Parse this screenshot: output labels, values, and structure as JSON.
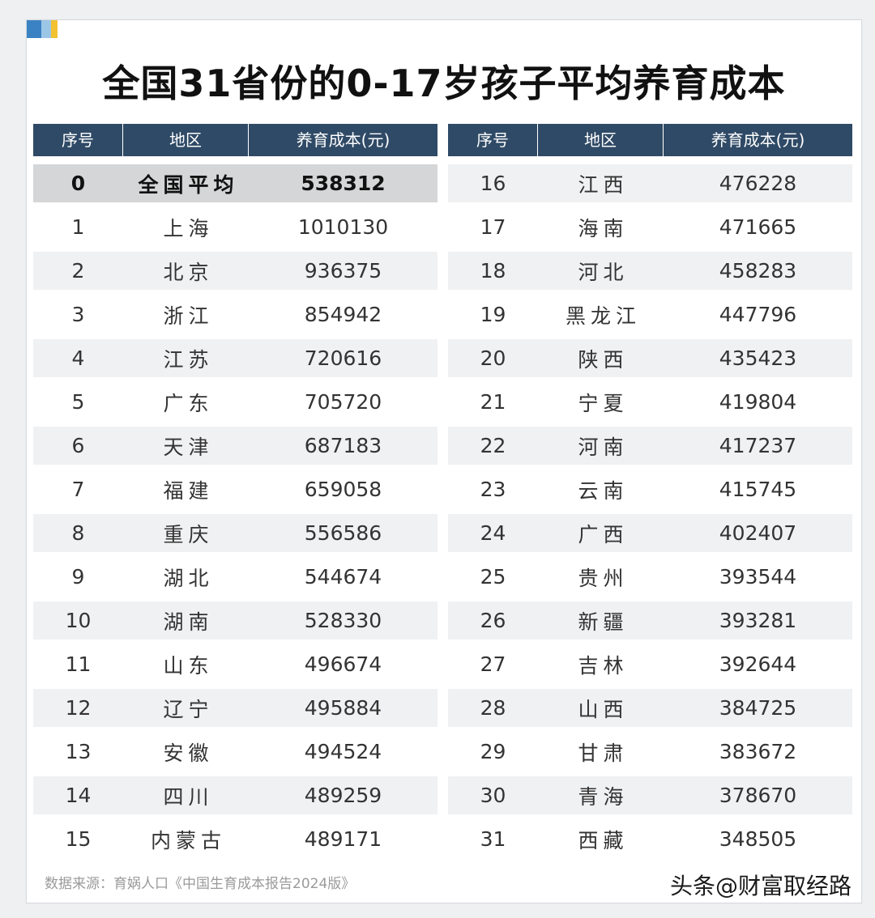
{
  "title": "全国31省份的0-17岁孩子平均养育成本",
  "headers": {
    "index": "序号",
    "region": "地区",
    "cost": "养育成本(元)"
  },
  "left_rows": [
    {
      "index": "0",
      "region": "全国平均",
      "cost": "538312"
    },
    {
      "index": "1",
      "region": "上海",
      "cost": "1010130"
    },
    {
      "index": "2",
      "region": "北京",
      "cost": "936375"
    },
    {
      "index": "3",
      "region": "浙江",
      "cost": "854942"
    },
    {
      "index": "4",
      "region": "江苏",
      "cost": "720616"
    },
    {
      "index": "5",
      "region": "广东",
      "cost": "705720"
    },
    {
      "index": "6",
      "region": "天津",
      "cost": "687183"
    },
    {
      "index": "7",
      "region": "福建",
      "cost": "659058"
    },
    {
      "index": "8",
      "region": "重庆",
      "cost": "556586"
    },
    {
      "index": "9",
      "region": "湖北",
      "cost": "544674"
    },
    {
      "index": "10",
      "region": "湖南",
      "cost": "528330"
    },
    {
      "index": "11",
      "region": "山东",
      "cost": "496674"
    },
    {
      "index": "12",
      "region": "辽宁",
      "cost": "495884"
    },
    {
      "index": "13",
      "region": "安徽",
      "cost": "494524"
    },
    {
      "index": "14",
      "region": "四川",
      "cost": "489259"
    },
    {
      "index": "15",
      "region": "内蒙古",
      "cost": "489171"
    }
  ],
  "right_rows": [
    {
      "index": "16",
      "region": "江西",
      "cost": "476228"
    },
    {
      "index": "17",
      "region": "海南",
      "cost": "471665"
    },
    {
      "index": "18",
      "region": "河北",
      "cost": "458283"
    },
    {
      "index": "19",
      "region": "黑龙江",
      "cost": "447796"
    },
    {
      "index": "20",
      "region": "陕西",
      "cost": "435423"
    },
    {
      "index": "21",
      "region": "宁夏",
      "cost": "419804"
    },
    {
      "index": "22",
      "region": "河南",
      "cost": "417237"
    },
    {
      "index": "23",
      "region": "云南",
      "cost": "415745"
    },
    {
      "index": "24",
      "region": "广西",
      "cost": "402407"
    },
    {
      "index": "25",
      "region": "贵州",
      "cost": "393544"
    },
    {
      "index": "26",
      "region": "新疆",
      "cost": "393281"
    },
    {
      "index": "27",
      "region": "吉林",
      "cost": "392644"
    },
    {
      "index": "28",
      "region": "山西",
      "cost": "384725"
    },
    {
      "index": "29",
      "region": "甘肃",
      "cost": "383672"
    },
    {
      "index": "30",
      "region": "青海",
      "cost": "378670"
    },
    {
      "index": "31",
      "region": "西藏",
      "cost": "348505"
    }
  ],
  "source": "数据来源：育娲人口《中国生育成本报告2024版》",
  "watermark": "头条@财富取经路",
  "colors": {
    "header_bg": "#2f4a66",
    "average_row_bg": "#d5d6d8",
    "stripe_bg": "#f0f1f3"
  }
}
